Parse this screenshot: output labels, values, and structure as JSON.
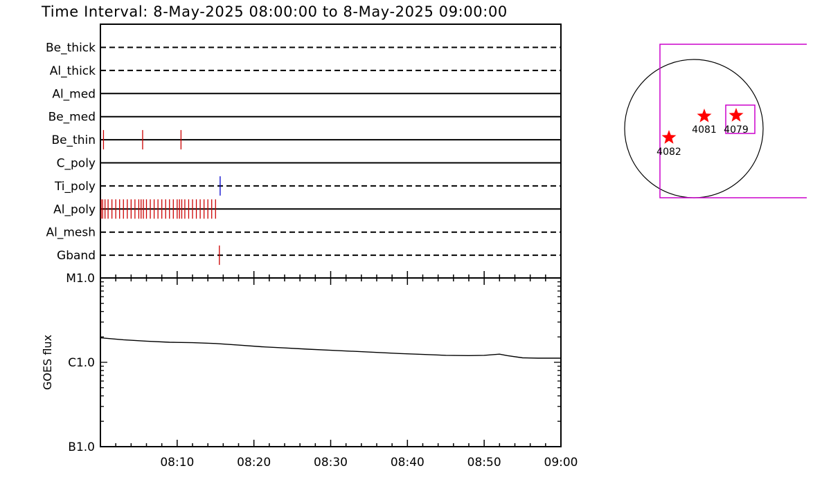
{
  "header": {
    "title": "Time Interval:  8-May-2025 08:00:00 to  8-May-2025 09:00:00"
  },
  "chart_data": [
    {
      "type": "timeline",
      "x_range_minutes": [
        0,
        60
      ],
      "channels": [
        {
          "name": "Be_thick",
          "style": "dashed",
          "events": []
        },
        {
          "name": "Al_thick",
          "style": "dashed",
          "events": []
        },
        {
          "name": "Al_med",
          "style": "solid",
          "events": []
        },
        {
          "name": "Be_med",
          "style": "solid",
          "events": []
        },
        {
          "name": "Be_thin",
          "style": "solid",
          "events": [
            0.4,
            5.5,
            10.5
          ]
        },
        {
          "name": "C_poly",
          "style": "solid",
          "events": []
        },
        {
          "name": "Ti_poly",
          "style": "dashed",
          "events": [
            15.6
          ],
          "event_color": "#0000cc"
        },
        {
          "name": "Al_poly",
          "style": "solid",
          "events": [
            0.1,
            0.3,
            0.6,
            1.0,
            1.5,
            2.0,
            2.5,
            3.0,
            3.5,
            4.0,
            4.5,
            5.0,
            5.3,
            5.6,
            6.0,
            6.5,
            7.0,
            7.5,
            8.0,
            8.5,
            9.0,
            9.5,
            10.0,
            10.3,
            10.6,
            11.0,
            11.5,
            12.0,
            12.5,
            13.0,
            13.5,
            14.0,
            14.5,
            15.0
          ],
          "event_color": "#cc0000"
        },
        {
          "name": "Al_mesh",
          "style": "dashed",
          "events": []
        },
        {
          "name": "Gband",
          "style": "dashed",
          "events": [
            15.5
          ]
        }
      ],
      "default_event_color": "#cc0000"
    },
    {
      "type": "line",
      "ylabel": "GOES flux",
      "yscale": "log",
      "ylim": [
        1e-06,
        0.0001
      ],
      "ytick_labels": [
        "B1.0",
        "C1.0",
        "M1.0"
      ],
      "x_ticks_minutes": [
        10,
        20,
        30,
        40,
        50,
        60
      ],
      "x_tick_labels": [
        "08:10",
        "08:20",
        "08:30",
        "08:40",
        "08:50",
        "09:00"
      ],
      "series": [
        {
          "x": [
            0,
            3,
            6,
            9,
            12,
            15,
            18,
            21,
            24,
            27,
            30,
            33,
            36,
            39,
            42,
            45,
            48,
            50,
            52,
            53,
            55,
            57,
            60
          ],
          "y": [
            1.95e-05,
            1.85e-05,
            1.78e-05,
            1.73e-05,
            1.71e-05,
            1.67e-05,
            1.6e-05,
            1.53e-05,
            1.48e-05,
            1.43e-05,
            1.39e-05,
            1.35e-05,
            1.31e-05,
            1.27e-05,
            1.24e-05,
            1.21e-05,
            1.2e-05,
            1.21e-05,
            1.25e-05,
            1.2e-05,
            1.13e-05,
            1.12e-05,
            1.12e-05
          ],
          "color": "#000000"
        }
      ]
    },
    {
      "type": "map",
      "outline_color": "#cc00cc",
      "marker_color": "#ff0000",
      "regions": [
        {
          "label": "4082"
        },
        {
          "label": "4081"
        },
        {
          "label": "4079"
        }
      ]
    }
  ]
}
